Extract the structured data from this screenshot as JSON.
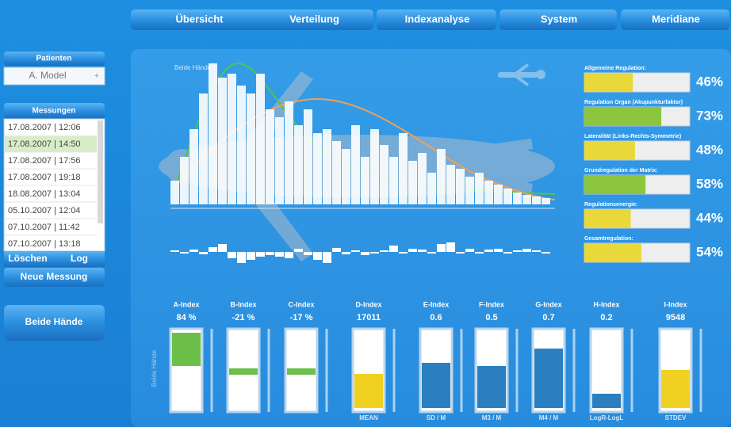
{
  "nav": [
    "Übersicht",
    "Verteilung",
    "Indexanalyse",
    "System",
    "Meridiane"
  ],
  "sidebar": {
    "patients_header": "Patienten",
    "patient": "A. Model",
    "patient_add": "+",
    "measurements_header": "Messungen",
    "measurements": [
      "17.08.2007 | 12:06",
      "17.08.2007 | 14:50",
      "17.08.2007 | 17:56",
      "17.08.2007 | 19:18",
      "18.08.2007 | 13:04",
      "05.10.2007 | 12:04",
      "07.10.2007 | 11:42",
      "07.10.2007 | 13:18"
    ],
    "selected": 1,
    "delete": "Löschen",
    "log": "Log",
    "new_measurement": "Neue Messung",
    "both_hands": "Beide Hände"
  },
  "histogram": {
    "title": "Beide Hände",
    "values": [
      30,
      60,
      95,
      140,
      178,
      160,
      165,
      150,
      140,
      165,
      120,
      110,
      130,
      100,
      120,
      90,
      95,
      80,
      70,
      100,
      60,
      95,
      75,
      60,
      90,
      55,
      65,
      40,
      70,
      50,
      45,
      35,
      40,
      30,
      25,
      20,
      15,
      12,
      10,
      8
    ],
    "deviations": [
      2,
      -2,
      3,
      -3,
      6,
      10,
      -8,
      -14,
      -10,
      -6,
      -4,
      -6,
      -8,
      4,
      -4,
      -10,
      -14,
      5,
      -3,
      2,
      -4,
      -2,
      2,
      8,
      -2,
      4,
      3,
      -2,
      10,
      12,
      -2,
      4,
      -2,
      3,
      4,
      -2,
      2,
      4,
      2,
      -2
    ]
  },
  "regulation": [
    {
      "label": "Allgemeine Regulation:",
      "value": 46,
      "value_label": "46%",
      "color": "#e8d83a"
    },
    {
      "label": "Regulation Organ (Akupunkturfaktor)",
      "value": 73,
      "value_label": "73%",
      "color": "#8cc63f"
    },
    {
      "label": "Lateralität (Links-Rechts-Symmetrie)",
      "value": 48,
      "value_label": "48%",
      "color": "#e8d83a"
    },
    {
      "label": "Grundregulation der Matrix:",
      "value": 58,
      "value_label": "58%",
      "color": "#8cc63f"
    },
    {
      "label": "Regulationsenergie:",
      "value": 44,
      "value_label": "44%",
      "color": "#e8d83a"
    },
    {
      "label": "Gesamtregulation:",
      "value": 54,
      "value_label": "54%",
      "color": "#e8d83a"
    }
  ],
  "index_side_label": "Beide Hände",
  "indexes": [
    {
      "name": "A-Index",
      "value": 84,
      "value_label": "84 %"
    },
    {
      "name": "B-Index",
      "value": -21,
      "value_label": "-21 %"
    },
    {
      "name": "C-Index",
      "value": -17,
      "value_label": "-17 %"
    },
    {
      "name": "D-Index",
      "value": 17011,
      "footer": "MEAN"
    },
    {
      "name": "E-Index",
      "value": 0.6,
      "footer": "SD / M"
    },
    {
      "name": "F-Index",
      "value": 0.5,
      "footer": "M3 / M"
    },
    {
      "name": "G-Index",
      "value": 0.7,
      "footer": "M4 / M"
    },
    {
      "name": "H-Index",
      "value": 0.2,
      "footer": "LogR-LogL"
    },
    {
      "name": "I-Index",
      "value": 9548,
      "footer": "STDEV"
    }
  ]
}
